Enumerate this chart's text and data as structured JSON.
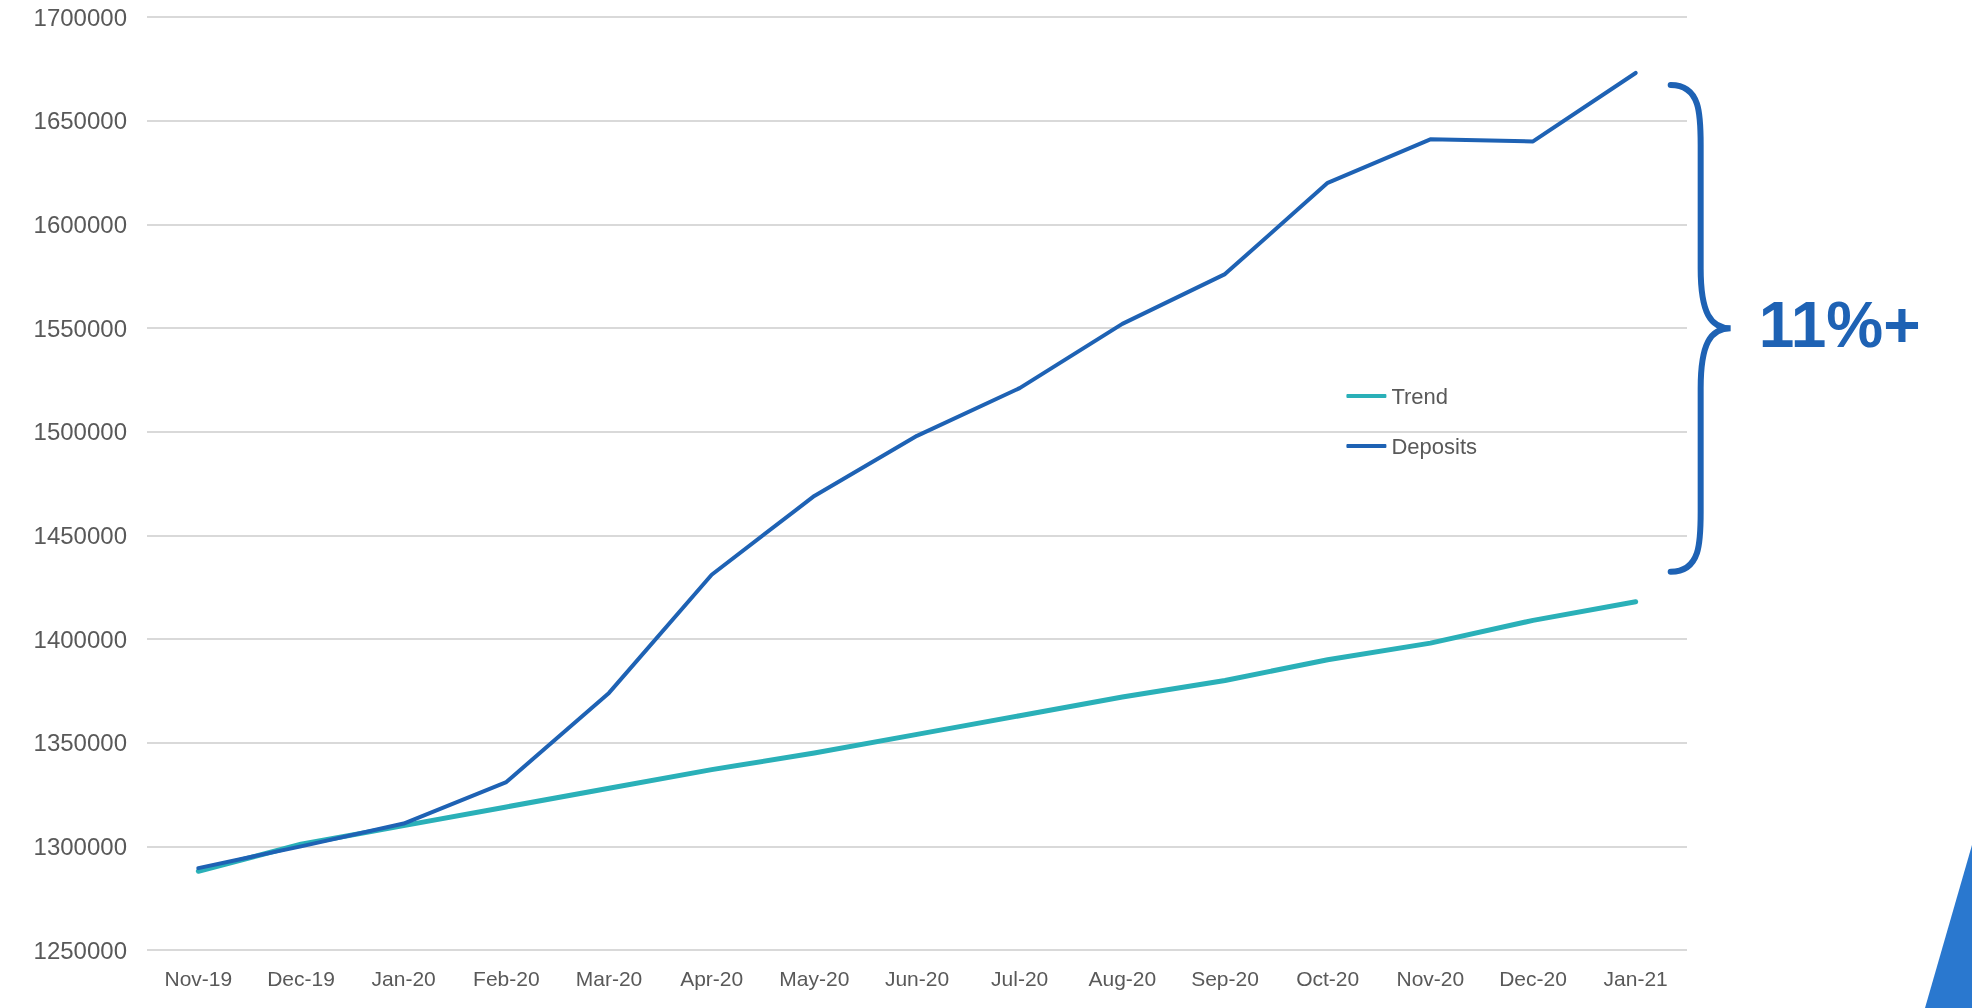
{
  "chart_data": {
    "type": "line",
    "categories": [
      "Nov-19",
      "Dec-19",
      "Jan-20",
      "Feb-20",
      "Mar-20",
      "Apr-20",
      "May-20",
      "Jun-20",
      "Jul-20",
      "Aug-20",
      "Sep-20",
      "Oct-20",
      "Nov-20",
      "Dec-20",
      "Jan-21"
    ],
    "series": [
      {
        "name": "Trend",
        "color": "#2ab0b8",
        "values": [
          1288000,
          1301000,
          1310000,
          1319000,
          1328000,
          1337000,
          1345000,
          1354000,
          1363000,
          1372000,
          1380000,
          1390000,
          1398000,
          1409000,
          1418000
        ]
      },
      {
        "name": "Deposits",
        "color": "#1e62b4",
        "values": [
          1289500,
          1300000,
          1311000,
          1331000,
          1374000,
          1431000,
          1469000,
          1498000,
          1521000,
          1552000,
          1576000,
          1620000,
          1641000,
          1640000,
          1673000
        ]
      }
    ],
    "ylim": [
      1250000,
      1700000
    ],
    "yticks": [
      1250000,
      1300000,
      1350000,
      1400000,
      1450000,
      1500000,
      1550000,
      1600000,
      1650000,
      1700000
    ],
    "grid": "y",
    "legend": "right",
    "marker": "none",
    "line_style": "solid",
    "annotations": [
      "11%+"
    ]
  }
}
